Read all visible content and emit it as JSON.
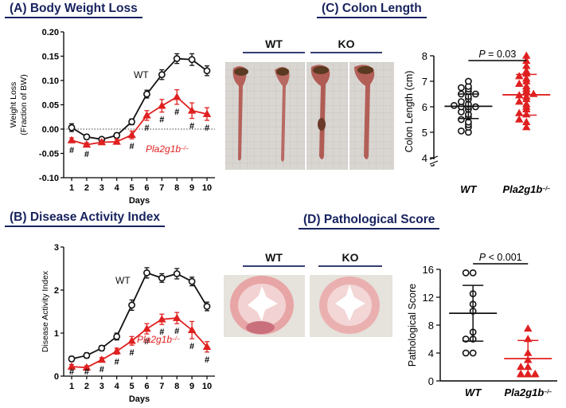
{
  "panels": {
    "A": {
      "title": "(A) Body Weight Loss"
    },
    "B": {
      "title": "(B) Disease Activity Index"
    },
    "C": {
      "title": "(C) Colon Length",
      "wt_label": "WT",
      "ko_label": "KO"
    },
    "D": {
      "title": "(D) Pathological Score",
      "wt_label": "WT",
      "ko_label": "KO"
    }
  },
  "colors": {
    "wt": "#111111",
    "ko": "#e02020",
    "title": "#17225e"
  },
  "chart_data": [
    {
      "id": "A",
      "type": "line",
      "xlabel": "Days",
      "ylabel_lines": [
        "Weight Loss",
        "(Fraction of BW)"
      ],
      "x": [
        1,
        2,
        3,
        4,
        5,
        6,
        7,
        8,
        9,
        10
      ],
      "xticks": [
        "1",
        "2",
        "3",
        "4",
        "5",
        "6",
        "7",
        "8",
        "9",
        "10"
      ],
      "ylim": [
        -0.1,
        0.2
      ],
      "yticks": [
        "-0.10",
        "-0.05",
        "0.00",
        "0.05",
        "0.10",
        "0.15",
        "0.20"
      ],
      "zero_line": true,
      "series": [
        {
          "name": "WT",
          "marker": "circle",
          "color": "#111111",
          "values": [
            0.003,
            -0.016,
            -0.021,
            -0.013,
            0.015,
            0.072,
            0.112,
            0.145,
            0.143,
            0.12
          ],
          "errors": [
            0.008,
            0.005,
            0.004,
            0.005,
            0.006,
            0.008,
            0.01,
            0.01,
            0.012,
            0.01
          ]
        },
        {
          "name": "Pla2g1b–/–",
          "marker": "triangle",
          "color": "#e02020",
          "values": [
            -0.023,
            -0.032,
            -0.027,
            -0.026,
            -0.012,
            0.028,
            0.048,
            0.066,
            0.038,
            0.031
          ],
          "errors": [
            0.005,
            0.004,
            0.004,
            0.005,
            0.008,
            0.01,
            0.013,
            0.015,
            0.016,
            0.013
          ]
        }
      ],
      "significance_mark": "#",
      "significant_days": [
        1,
        2,
        5,
        6,
        7,
        8,
        9,
        10
      ]
    },
    {
      "id": "B",
      "type": "line",
      "xlabel": "Days",
      "ylabel_lines": [
        "Disease Activity Index"
      ],
      "x": [
        1,
        2,
        3,
        4,
        5,
        6,
        7,
        8,
        9,
        10
      ],
      "xticks": [
        "1",
        "2",
        "3",
        "4",
        "5",
        "6",
        "7",
        "8",
        "9",
        "10"
      ],
      "ylim": [
        0,
        3
      ],
      "yticks": [
        "0",
        "1",
        "2",
        "3"
      ],
      "series": [
        {
          "name": "WT",
          "marker": "circle",
          "color": "#111111",
          "values": [
            0.4,
            0.48,
            0.65,
            0.92,
            1.65,
            2.4,
            2.28,
            2.38,
            2.2,
            1.62
          ],
          "errors": [
            0.06,
            0.06,
            0.06,
            0.08,
            0.12,
            0.12,
            0.1,
            0.12,
            0.1,
            0.1
          ]
        },
        {
          "name": "Pla2g1b–/–",
          "marker": "triangle",
          "color": "#e02020",
          "values": [
            0.22,
            0.2,
            0.38,
            0.58,
            0.82,
            1.1,
            1.32,
            1.35,
            1.07,
            0.68
          ],
          "errors": [
            0.05,
            0.04,
            0.05,
            0.07,
            0.1,
            0.12,
            0.12,
            0.13,
            0.2,
            0.12
          ]
        }
      ],
      "significance_mark": "#",
      "significant_days": [
        1,
        2,
        3,
        4,
        5,
        6,
        7,
        8,
        9,
        10
      ]
    },
    {
      "id": "C",
      "type": "scatter",
      "ylabel": "Colon Length (cm)",
      "ylim": [
        4,
        8
      ],
      "yticks": [
        "4",
        "5",
        "6",
        "7",
        "8"
      ],
      "axis_break": true,
      "categories": [
        "WT",
        "Pla2g1b–/–"
      ],
      "groups": [
        {
          "name": "WT",
          "marker": "circle",
          "color": "#111111",
          "mean": 6.02,
          "sd": 0.48,
          "values": [
            5.0,
            5.05,
            5.2,
            5.3,
            5.4,
            5.5,
            5.6,
            5.7,
            5.8,
            5.9,
            6.0,
            6.0,
            6.0,
            6.05,
            6.1,
            6.2,
            6.3,
            6.4,
            6.5,
            6.5,
            6.6,
            6.7,
            6.75,
            6.8,
            7.0
          ]
        },
        {
          "name": "Pla2g1b–/–",
          "marker": "triangle",
          "color": "#e02020",
          "mean": 6.47,
          "sd": 0.8,
          "values": [
            5.2,
            5.4,
            5.5,
            5.7,
            5.75,
            5.9,
            6.0,
            6.1,
            6.2,
            6.3,
            6.4,
            6.45,
            6.5,
            6.6,
            6.7,
            6.8,
            6.9,
            7.0,
            7.1,
            7.2,
            7.3,
            7.4,
            7.6,
            7.8,
            8.0
          ]
        }
      ],
      "pvalue_text": "P = 0.03"
    },
    {
      "id": "D",
      "type": "scatter",
      "ylabel": "Pathological  Score",
      "ylim": [
        0,
        16
      ],
      "yticks": [
        "0",
        "4",
        "8",
        "12",
        "16"
      ],
      "categories": [
        "WT",
        "Pla2g1b–/–"
      ],
      "groups": [
        {
          "name": "WT",
          "marker": "circle",
          "color": "#111111",
          "mean": 9.7,
          "sd": 4.0,
          "values": [
            15.5,
            15.5,
            12.5,
            11.0,
            10.0,
            7.0,
            6.0,
            6.0,
            4.0,
            4.0
          ]
        },
        {
          "name": "Pla2g1b–/–",
          "marker": "triangle",
          "color": "#e02020",
          "mean": 3.2,
          "sd": 2.6,
          "values": [
            7.5,
            6.0,
            4.0,
            3.0,
            2.0,
            2.0,
            1.0,
            1.0,
            1.0
          ]
        }
      ],
      "pvalue_text": "P < 0.001"
    }
  ]
}
